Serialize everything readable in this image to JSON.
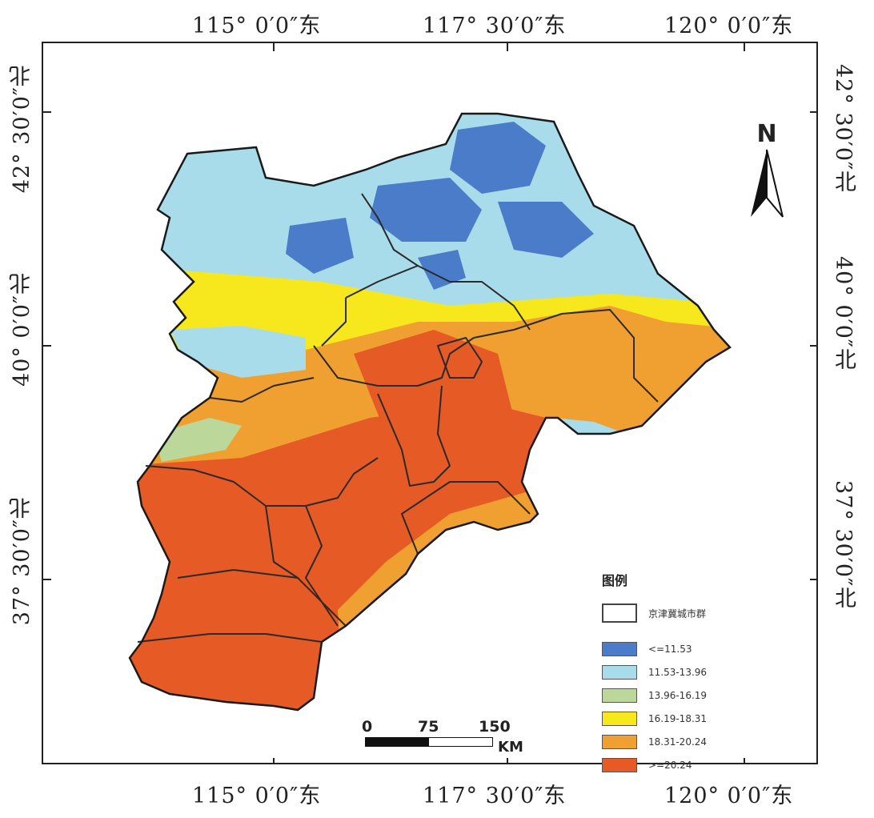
{
  "axes": {
    "top": [
      "115° 0′0″东",
      "117° 30′0″东",
      "120° 0′0″东"
    ],
    "bottom": [
      "115° 0′0″东",
      "117° 30′0″东",
      "120° 0′0″东"
    ],
    "left": [
      "42° 30′0″北",
      "40° 0′0″北",
      "37° 30′0″北"
    ],
    "right": [
      "42° 30′0″北",
      "40° 0′0″北",
      "37° 30′0″北"
    ]
  },
  "north_arrow": {
    "label": "N"
  },
  "scale_bar": {
    "ticks": [
      "0",
      "75",
      "150"
    ],
    "unit": "KM"
  },
  "legend": {
    "title": "图例",
    "boundary_label": "京津冀城市群",
    "classes": [
      {
        "label": "<=11.53",
        "color": "#4a7cc9"
      },
      {
        "label": "11.53-13.96",
        "color": "#a8dcea"
      },
      {
        "label": "13.96-16.19",
        "color": "#bcd79a"
      },
      {
        "label": "16.19-18.31",
        "color": "#f6e81c"
      },
      {
        "label": "18.31-20.24",
        "color": "#f0a030"
      },
      {
        "label": ">=20.24",
        "color": "#e65a25"
      }
    ]
  }
}
